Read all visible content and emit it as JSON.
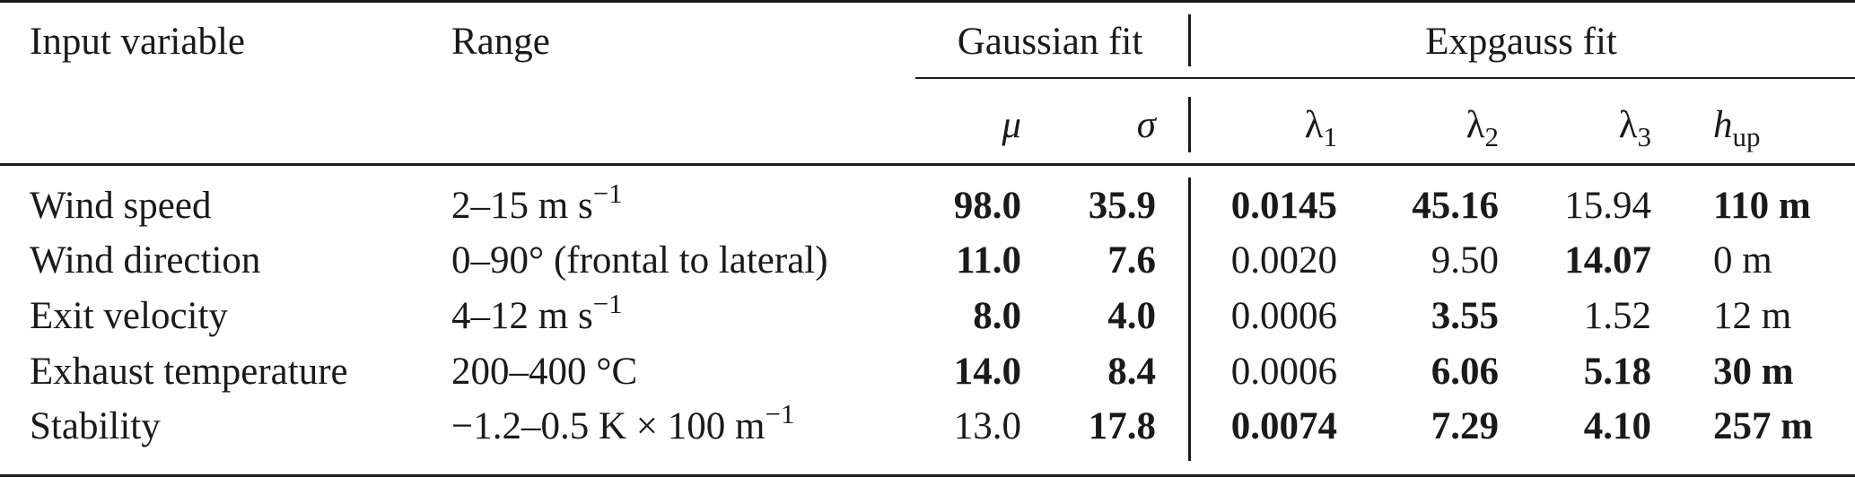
{
  "table": {
    "headers": {
      "input_variable": "Input variable",
      "range": "Range",
      "gaussian_fit": "Gaussian fit",
      "expgauss_fit": "Expgauss fit",
      "mu": "μ",
      "sigma": "σ",
      "lambda_symbol": "λ",
      "lambda1_sub": "1",
      "lambda2_sub": "2",
      "lambda3_sub": "3",
      "h_symbol": "h",
      "h_sub": "up"
    },
    "rows": [
      {
        "variable": "Wind speed",
        "range": {
          "text": "2–15 m s",
          "sup": "−1"
        },
        "mu": "98.0",
        "mu_bold": true,
        "sigma": "35.9",
        "sigma_bold": true,
        "lambda1": "0.0145",
        "lambda1_bold": true,
        "lambda2": "45.16",
        "lambda2_bold": true,
        "lambda3": "15.94",
        "lambda3_bold": false,
        "h_up": "110 m",
        "h_up_bold": true
      },
      {
        "variable": "Wind direction",
        "range": {
          "text": "0–90° (frontal to lateral)",
          "sup": ""
        },
        "mu": "11.0",
        "mu_bold": true,
        "sigma": "7.6",
        "sigma_bold": true,
        "lambda1": "0.0020",
        "lambda1_bold": false,
        "lambda2": "9.50",
        "lambda2_bold": false,
        "lambda3": "14.07",
        "lambda3_bold": true,
        "h_up": "0 m",
        "h_up_bold": false
      },
      {
        "variable": "Exit velocity",
        "range": {
          "text": "4–12 m s",
          "sup": "−1"
        },
        "mu": "8.0",
        "mu_bold": true,
        "sigma": "4.0",
        "sigma_bold": true,
        "lambda1": "0.0006",
        "lambda1_bold": false,
        "lambda2": "3.55",
        "lambda2_bold": true,
        "lambda3": "1.52",
        "lambda3_bold": false,
        "h_up": "12 m",
        "h_up_bold": false
      },
      {
        "variable": "Exhaust temperature",
        "range": {
          "text": "200–400 °C",
          "sup": ""
        },
        "mu": "14.0",
        "mu_bold": true,
        "sigma": "8.4",
        "sigma_bold": true,
        "lambda1": "0.0006",
        "lambda1_bold": false,
        "lambda2": "6.06",
        "lambda2_bold": true,
        "lambda3": "5.18",
        "lambda3_bold": true,
        "h_up": "30 m",
        "h_up_bold": true
      },
      {
        "variable": "Stability",
        "range": {
          "text": "−1.2–0.5 K × 100 m",
          "sup": "−1"
        },
        "mu": "13.0",
        "mu_bold": false,
        "sigma": "17.8",
        "sigma_bold": true,
        "lambda1": "0.0074",
        "lambda1_bold": true,
        "lambda2": "7.29",
        "lambda2_bold": true,
        "lambda3": "4.10",
        "lambda3_bold": true,
        "h_up": "257 m",
        "h_up_bold": true
      }
    ]
  }
}
